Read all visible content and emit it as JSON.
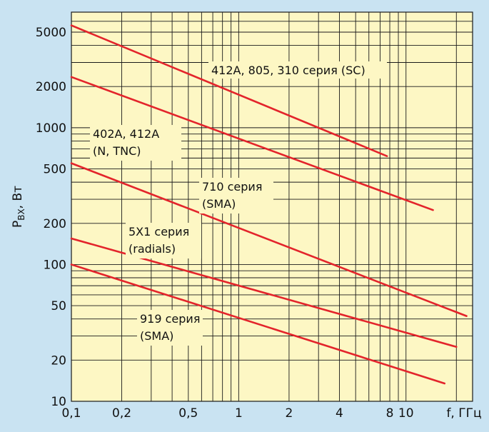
{
  "chart_data": {
    "type": "line",
    "title": "",
    "xlabel": "f, ГГц",
    "ylabel": "P_вх, Вт",
    "ylabel_main": "P",
    "ylabel_sub": "ВХ",
    "ylabel_rest": ", Вт",
    "xscale": "log",
    "yscale": "log",
    "xlim": [
      0.1,
      25
    ],
    "ylim": [
      10,
      7000
    ],
    "grid": true,
    "x_ticks": [
      {
        "value": 0.1,
        "label": "0,1"
      },
      {
        "value": 0.2,
        "label": "0,2"
      },
      {
        "value": 0.5,
        "label": "0,5"
      },
      {
        "value": 1,
        "label": "1"
      },
      {
        "value": 2,
        "label": "2"
      },
      {
        "value": 4,
        "label": "4"
      },
      {
        "value": 8,
        "label": "8"
      },
      {
        "value": 10,
        "label": "10"
      }
    ],
    "y_ticks": [
      {
        "value": 10,
        "label": "10"
      },
      {
        "value": 20,
        "label": "20"
      },
      {
        "value": 50,
        "label": "50"
      },
      {
        "value": 100,
        "label": "100"
      },
      {
        "value": 200,
        "label": "200"
      },
      {
        "value": 500,
        "label": "500"
      },
      {
        "value": 1000,
        "label": "1000"
      },
      {
        "value": 2000,
        "label": "2000"
      },
      {
        "value": 5000,
        "label": "5000"
      }
    ],
    "series": [
      {
        "x": [
          0.1,
          7.7
        ],
        "y": [
          5600,
          620
        ]
      },
      {
        "x": [
          0.1,
          14.5
        ],
        "y": [
          2350,
          250
        ]
      },
      {
        "x": [
          0.1,
          23
        ],
        "y": [
          550,
          42
        ]
      },
      {
        "x": [
          0.1,
          20
        ],
        "y": [
          155,
          25
        ]
      },
      {
        "x": [
          0.1,
          17
        ],
        "y": [
          100,
          13.5
        ]
      }
    ],
    "annotations": [
      {
        "lines": [
          "412A, 805, 310 серия (SC)"
        ]
      },
      {
        "lines": [
          "402A, 412A",
          "(N, TNC)"
        ]
      },
      {
        "lines": [
          "710 серия",
          "(SMA)"
        ]
      },
      {
        "lines": [
          "5X1 серия",
          "(radials)"
        ]
      },
      {
        "lines": [
          "919 серия",
          "(SMA)"
        ]
      }
    ],
    "colors": {
      "line": "#e3242b",
      "plot_background": "#fdf7c4",
      "frame_background": "#c9e3f2",
      "grid": "#1a1a1a"
    }
  }
}
